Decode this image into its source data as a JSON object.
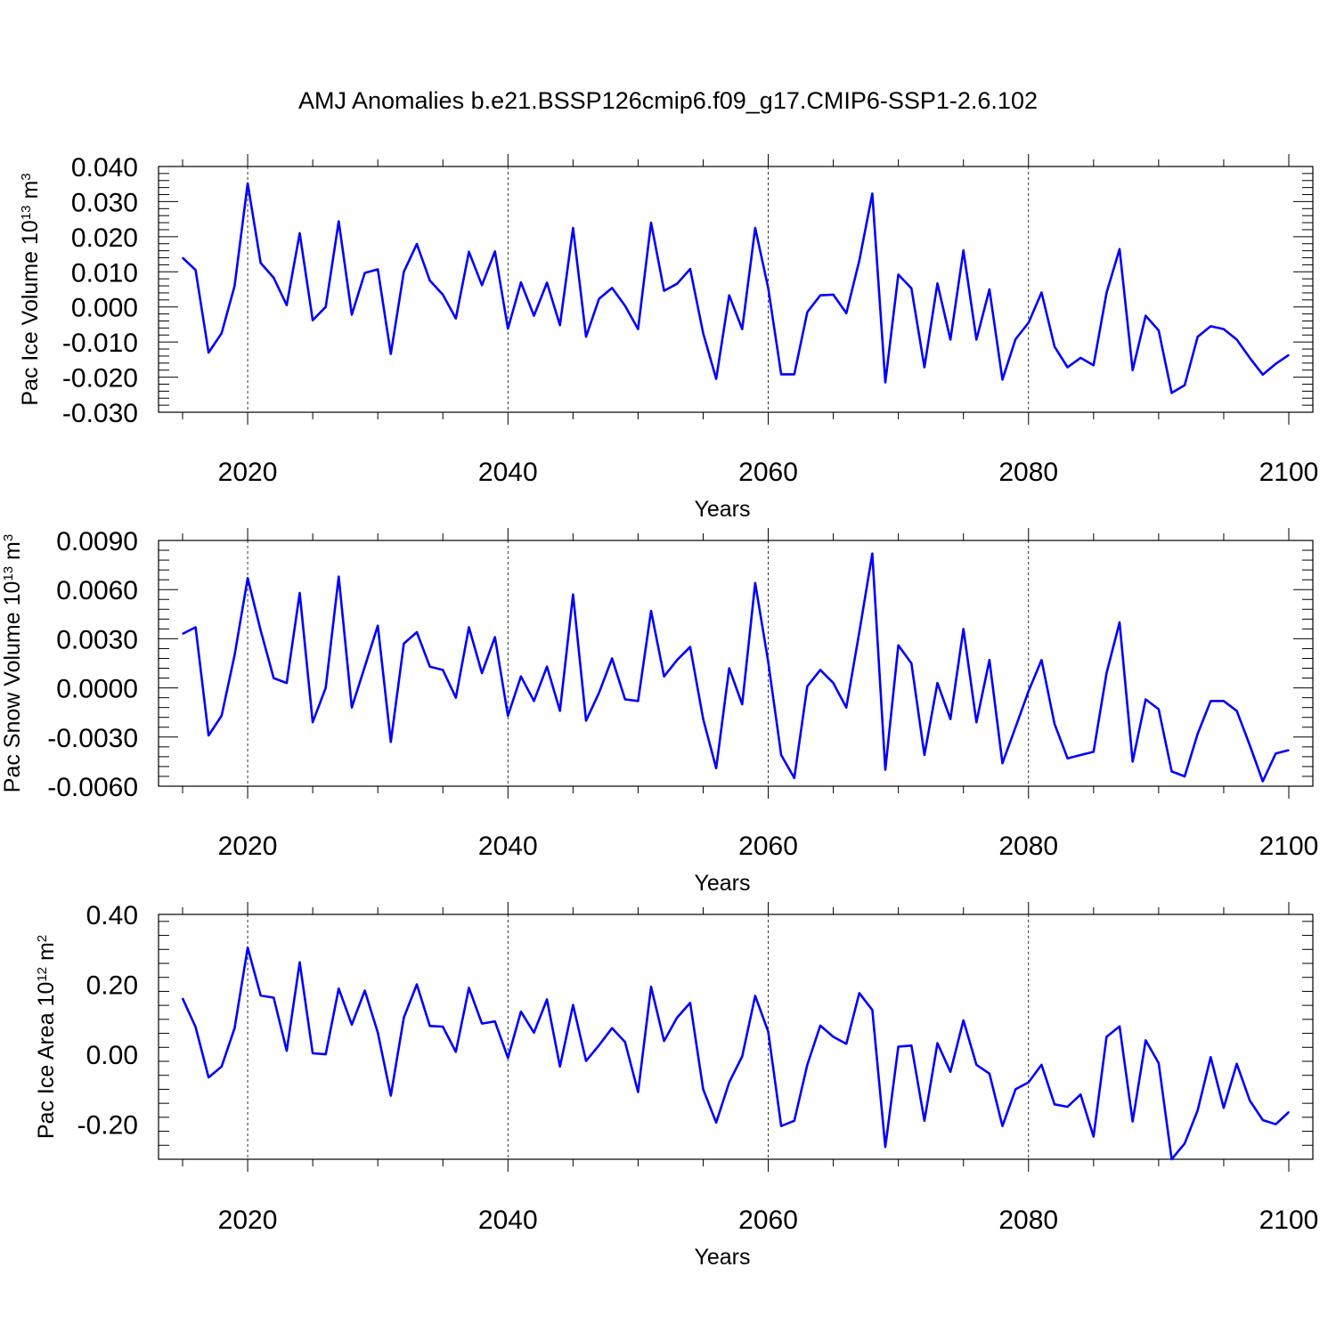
{
  "title": "AMJ Anomalies b.e21.BSSP126cmip6.f09_g17.CMIP6-SSP1-2.6.102",
  "colors": {
    "line": "#0000ff",
    "axis": "#000000",
    "grid": "#000000"
  },
  "chart_data": [
    {
      "type": "line",
      "ylabel": "Pac Ice Volume 10",
      "ylabel_exp": "13",
      "ylabel_unit": " m",
      "ylabel_unit_exp": "3",
      "xlabel": "Years",
      "xlim": [
        2015,
        2100
      ],
      "ylim": [
        -0.03,
        0.04
      ],
      "yticks": [
        "0.040",
        "0.030",
        "0.020",
        "0.010",
        "0.000",
        "-0.010",
        "-0.020",
        "-0.030"
      ],
      "ytick_values": [
        0.04,
        0.03,
        0.02,
        0.01,
        0.0,
        -0.01,
        -0.02,
        -0.03
      ],
      "xticks": [
        "2020",
        "2040",
        "2060",
        "2080",
        "2100"
      ],
      "xtick_values": [
        2020,
        2040,
        2060,
        2080,
        2100
      ],
      "grid_x": [
        2020,
        2040,
        2060,
        2080
      ],
      "series": [
        {
          "x": [
            2015,
            2016,
            2017,
            2018,
            2019,
            2020,
            2021,
            2022,
            2023,
            2024,
            2025,
            2026,
            2027,
            2028,
            2029,
            2030,
            2031,
            2032,
            2033,
            2034,
            2035,
            2036,
            2037,
            2038,
            2039,
            2040,
            2041,
            2042,
            2043,
            2044,
            2045,
            2046,
            2047,
            2048,
            2049,
            2050,
            2051,
            2052,
            2053,
            2054,
            2055,
            2056,
            2057,
            2058,
            2059,
            2060,
            2061,
            2062,
            2063,
            2064,
            2065,
            2066,
            2067,
            2068,
            2069,
            2070,
            2071,
            2072,
            2073,
            2074,
            2075,
            2076,
            2077,
            2078,
            2079,
            2080,
            2081,
            2082,
            2083,
            2084,
            2085,
            2086,
            2087,
            2088,
            2089,
            2090,
            2091,
            2092,
            2093,
            2094,
            2095,
            2096,
            2097,
            2098,
            2099,
            2100
          ],
          "values": [
            0.014,
            0.0105,
            -0.013,
            -0.0075,
            0.006,
            0.0352,
            0.0125,
            0.0083,
            0.0005,
            0.021,
            -0.0038,
            0.0,
            0.0244,
            -0.0022,
            0.0097,
            0.0107,
            -0.0134,
            0.01,
            0.0179,
            0.0075,
            0.0035,
            -0.0033,
            0.0157,
            0.0062,
            0.0158,
            -0.0062,
            0.007,
            -0.0025,
            0.0069,
            -0.0052,
            0.0225,
            -0.0085,
            0.0023,
            0.0054,
            0.0003,
            -0.0063,
            0.024,
            0.0046,
            0.0066,
            0.0108,
            -0.0075,
            -0.0205,
            0.0033,
            -0.0063,
            0.0225,
            0.0054,
            -0.0192,
            -0.0192,
            -0.0015,
            0.0033,
            0.0035,
            -0.0018,
            0.0132,
            0.0323,
            -0.0215,
            0.0092,
            0.0053,
            -0.0172,
            0.0067,
            -0.0093,
            0.0161,
            -0.0093,
            0.005,
            -0.0207,
            -0.0092,
            -0.0045,
            0.0041,
            -0.0113,
            -0.0172,
            -0.0145,
            -0.0166,
            0.004,
            0.0165,
            -0.018,
            -0.0025,
            -0.0067,
            -0.0245,
            -0.0223,
            -0.0085,
            -0.0055,
            -0.0063,
            -0.0093,
            -0.0145,
            -0.0193,
            -0.0162,
            -0.0137
          ]
        }
      ]
    },
    {
      "type": "line",
      "ylabel": "Pac Snow Volume 10",
      "ylabel_exp": "13",
      "ylabel_unit": " m",
      "ylabel_unit_exp": "3",
      "xlabel": "Years",
      "xlim": [
        2015,
        2100
      ],
      "ylim": [
        -0.006,
        0.009
      ],
      "yticks": [
        "0.0090",
        "0.0060",
        "0.0030",
        "0.0000",
        "-0.0030",
        "-0.0060"
      ],
      "ytick_values": [
        0.009,
        0.006,
        0.003,
        0.0,
        -0.003,
        -0.006
      ],
      "xticks": [
        "2020",
        "2040",
        "2060",
        "2080",
        "2100"
      ],
      "xtick_values": [
        2020,
        2040,
        2060,
        2080,
        2100
      ],
      "grid_x": [
        2020,
        2040,
        2060,
        2080
      ],
      "series": [
        {
          "x": [
            2015,
            2016,
            2017,
            2018,
            2019,
            2020,
            2021,
            2022,
            2023,
            2024,
            2025,
            2026,
            2027,
            2028,
            2029,
            2030,
            2031,
            2032,
            2033,
            2034,
            2035,
            2036,
            2037,
            2038,
            2039,
            2040,
            2041,
            2042,
            2043,
            2044,
            2045,
            2046,
            2047,
            2048,
            2049,
            2050,
            2051,
            2052,
            2053,
            2054,
            2055,
            2056,
            2057,
            2058,
            2059,
            2060,
            2061,
            2062,
            2063,
            2064,
            2065,
            2066,
            2067,
            2068,
            2069,
            2070,
            2071,
            2072,
            2073,
            2074,
            2075,
            2076,
            2077,
            2078,
            2079,
            2080,
            2081,
            2082,
            2083,
            2084,
            2085,
            2086,
            2087,
            2088,
            2089,
            2090,
            2091,
            2092,
            2093,
            2094,
            2095,
            2096,
            2097,
            2098,
            2099,
            2100
          ],
          "values": [
            0.0033,
            0.0037,
            -0.0029,
            -0.0017,
            0.002,
            0.0067,
            0.0035,
            0.0006,
            0.0003,
            0.0058,
            -0.0021,
            0.0,
            0.0068,
            -0.0012,
            0.0013,
            0.0038,
            -0.0033,
            0.0027,
            0.0034,
            0.0013,
            0.0011,
            -0.0006,
            0.0037,
            0.0009,
            0.0031,
            -0.0017,
            0.0007,
            -0.0008,
            0.0013,
            -0.0014,
            0.0057,
            -0.002,
            -0.0003,
            0.0018,
            -0.0007,
            -0.0008,
            0.0047,
            0.0007,
            0.0017,
            0.0025,
            -0.0019,
            -0.0049,
            0.0012,
            -0.001,
            0.0064,
            0.0016,
            -0.0041,
            -0.0055,
            0.0001,
            0.0011,
            0.0003,
            -0.0012,
            0.0034,
            0.0082,
            -0.005,
            0.0026,
            0.0015,
            -0.0041,
            0.0003,
            -0.0019,
            0.0036,
            -0.0021,
            0.0017,
            -0.0046,
            -0.0024,
            -0.0002,
            0.0017,
            -0.0022,
            -0.0043,
            -0.0041,
            -0.0039,
            0.0009,
            0.004,
            -0.0045,
            -0.0007,
            -0.0013,
            -0.0051,
            -0.0054,
            -0.0028,
            -0.0008,
            -0.0008,
            -0.0014,
            -0.0035,
            -0.0057,
            -0.004,
            -0.0038
          ]
        }
      ]
    },
    {
      "type": "line",
      "ylabel": "Pac Ice Area 10",
      "ylabel_exp": "12",
      "ylabel_unit": " m",
      "ylabel_unit_exp": "2",
      "xlabel": "Years",
      "xlim": [
        2015,
        2100
      ],
      "ylim": [
        -0.3,
        0.4
      ],
      "yticks": [
        "0.40",
        "0.20",
        "0.00",
        "-0.20"
      ],
      "ytick_values": [
        0.4,
        0.2,
        0.0,
        -0.2
      ],
      "xticks": [
        "2020",
        "2040",
        "2060",
        "2080",
        "2100"
      ],
      "xtick_values": [
        2020,
        2040,
        2060,
        2080,
        2100
      ],
      "grid_x": [
        2020,
        2040,
        2060,
        2080
      ],
      "series": [
        {
          "x": [
            2015,
            2016,
            2017,
            2018,
            2019,
            2020,
            2021,
            2022,
            2023,
            2024,
            2025,
            2026,
            2027,
            2028,
            2029,
            2030,
            2031,
            2032,
            2033,
            2034,
            2035,
            2036,
            2037,
            2038,
            2039,
            2040,
            2041,
            2042,
            2043,
            2044,
            2045,
            2046,
            2047,
            2048,
            2049,
            2050,
            2051,
            2052,
            2053,
            2054,
            2055,
            2056,
            2057,
            2058,
            2059,
            2060,
            2061,
            2062,
            2063,
            2064,
            2065,
            2066,
            2067,
            2068,
            2069,
            2070,
            2071,
            2072,
            2073,
            2074,
            2075,
            2076,
            2077,
            2078,
            2079,
            2080,
            2081,
            2082,
            2083,
            2084,
            2085,
            2086,
            2087,
            2088,
            2089,
            2090,
            2091,
            2092,
            2093,
            2094,
            2095,
            2096,
            2097,
            2098,
            2099,
            2100
          ],
          "values": [
            0.16,
            0.078,
            -0.066,
            -0.035,
            0.075,
            0.305,
            0.168,
            0.162,
            0.01,
            0.263,
            0.003,
            0.0,
            0.188,
            0.085,
            0.182,
            0.062,
            -0.118,
            0.105,
            0.2,
            0.081,
            0.079,
            0.007,
            0.19,
            0.088,
            0.094,
            -0.01,
            0.122,
            0.062,
            0.157,
            -0.035,
            0.141,
            -0.019,
            0.026,
            0.075,
            0.035,
            -0.108,
            0.193,
            0.038,
            0.105,
            0.147,
            -0.1,
            -0.195,
            -0.08,
            -0.006,
            0.167,
            0.065,
            -0.205,
            -0.19,
            -0.03,
            0.082,
            0.05,
            0.03,
            0.175,
            0.127,
            -0.265,
            0.022,
            0.025,
            -0.19,
            0.032,
            -0.05,
            0.097,
            -0.03,
            -0.055,
            -0.205,
            -0.1,
            -0.08,
            -0.03,
            -0.143,
            -0.15,
            -0.115,
            -0.235,
            0.05,
            0.08,
            -0.192,
            0.04,
            -0.025,
            -0.3,
            -0.255,
            -0.16,
            -0.008,
            -0.153,
            -0.027,
            -0.132,
            -0.188,
            -0.2,
            -0.165
          ]
        }
      ]
    }
  ]
}
